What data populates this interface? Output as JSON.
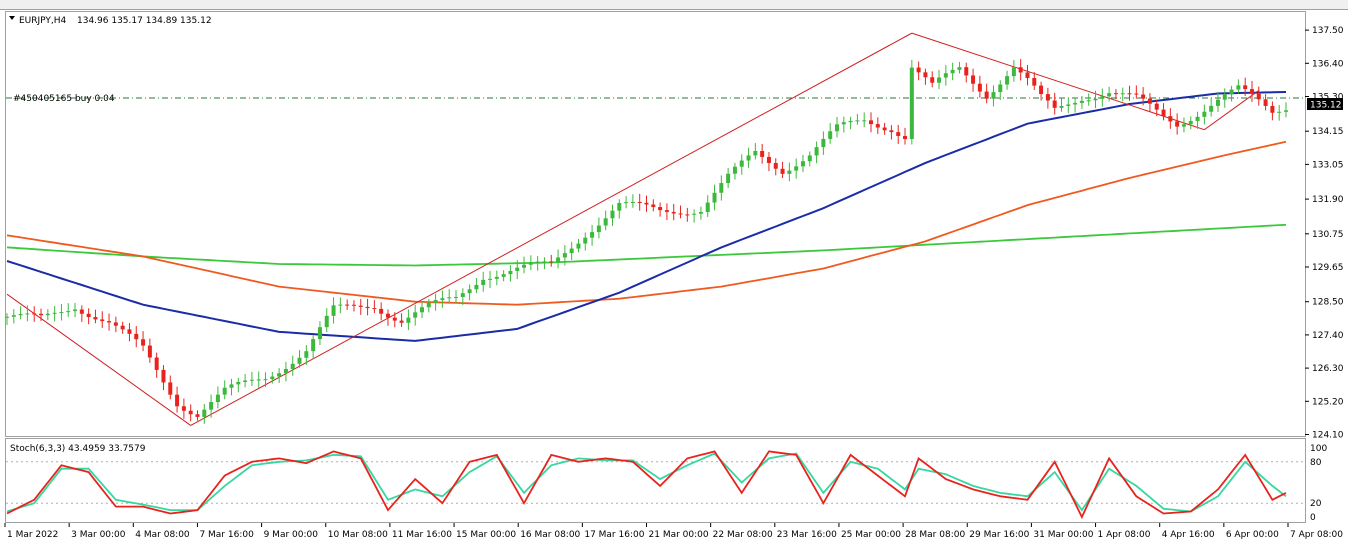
{
  "header": {
    "symbol": "EURJPY,H4",
    "ohlc": "134.96 135.17 134.89 135.12"
  },
  "trade_label": "#450405165 buy 0.04",
  "current_price_label": "135.12",
  "indicator": {
    "label": "Stoch(6,3,3) 43.4959 33.7579",
    "ticks": [
      "100",
      "80",
      "20",
      "0"
    ]
  },
  "colors": {
    "bull": "#3cb93c",
    "bear": "#e8231d",
    "ma_fast": "#1a2ca8",
    "ma_mid": "#f05a1e",
    "ma_slow": "#3cc83c",
    "trendline": "#d02020",
    "stoch_main": "#e8231d",
    "stoch_signal": "#36d7a0"
  },
  "chart_data": {
    "type": "candlestick",
    "price_axis_ticks": [
      "137.50",
      "136.40",
      "135.30",
      "134.15",
      "133.05",
      "131.90",
      "130.75",
      "129.65",
      "128.50",
      "127.40",
      "126.30",
      "125.20",
      "124.10"
    ],
    "price_range": [
      124.05,
      138.1
    ],
    "time_axis_labels": [
      "1 Mar 2022",
      "3 Mar 00:00",
      "4 Mar 08:00",
      "7 Mar 16:00",
      "9 Mar 00:00",
      "10 Mar 08:00",
      "11 Mar 16:00",
      "15 Mar 00:00",
      "16 Mar 08:00",
      "17 Mar 16:00",
      "21 Mar 00:00",
      "22 Mar 08:00",
      "23 Mar 16:00",
      "25 Mar 00:00",
      "28 Mar 08:00",
      "29 Mar 16:00",
      "31 Mar 00:00",
      "1 Apr 08:00",
      "4 Apr 16:00",
      "6 Apr 00:00",
      "7 Apr 08:00"
    ],
    "trade_level": 135.25,
    "close_samples": [
      [
        0,
        128.0
      ],
      [
        5,
        127.9
      ],
      [
        10,
        128.4
      ],
      [
        15,
        127.8
      ],
      [
        20,
        126.9
      ],
      [
        25,
        125.2
      ],
      [
        28,
        124.8
      ],
      [
        32,
        125.5
      ],
      [
        38,
        126.0
      ],
      [
        44,
        126.9
      ],
      [
        48,
        128.2
      ],
      [
        54,
        128.4
      ],
      [
        58,
        127.9
      ],
      [
        62,
        128.3
      ],
      [
        66,
        128.6
      ],
      [
        70,
        129.4
      ],
      [
        76,
        129.6
      ],
      [
        80,
        129.7
      ],
      [
        85,
        130.8
      ],
      [
        90,
        131.7
      ],
      [
        96,
        131.5
      ],
      [
        102,
        131.6
      ],
      [
        106,
        132.6
      ],
      [
        110,
        133.4
      ],
      [
        114,
        132.9
      ],
      [
        118,
        133.4
      ],
      [
        122,
        134.2
      ],
      [
        126,
        134.5
      ],
      [
        130,
        134.3
      ],
      [
        132,
        134.0
      ],
      [
        133,
        136.3
      ],
      [
        136,
        135.6
      ],
      [
        140,
        136.2
      ],
      [
        144,
        135.4
      ],
      [
        148,
        136.3
      ],
      [
        150,
        135.8
      ],
      [
        152,
        135.2
      ],
      [
        154,
        134.8
      ],
      [
        158,
        135.3
      ],
      [
        162,
        135.5
      ],
      [
        166,
        135.2
      ],
      [
        170,
        134.6
      ],
      [
        172,
        134.4
      ],
      [
        175,
        134.8
      ],
      [
        178,
        135.2
      ],
      [
        181,
        135.5
      ],
      [
        184,
        135.1
      ],
      [
        186,
        134.8
      ],
      [
        188,
        135.0
      ]
    ],
    "ma_fast_samples": [
      [
        0,
        129.85
      ],
      [
        20,
        128.4
      ],
      [
        40,
        127.5
      ],
      [
        60,
        127.2
      ],
      [
        75,
        127.6
      ],
      [
        90,
        128.8
      ],
      [
        105,
        130.3
      ],
      [
        120,
        131.6
      ],
      [
        135,
        133.1
      ],
      [
        150,
        134.4
      ],
      [
        165,
        135.05
      ],
      [
        178,
        135.4
      ],
      [
        188,
        135.45
      ]
    ],
    "ma_mid_samples": [
      [
        0,
        130.7
      ],
      [
        20,
        130.0
      ],
      [
        40,
        129.0
      ],
      [
        60,
        128.5
      ],
      [
        75,
        128.4
      ],
      [
        90,
        128.6
      ],
      [
        105,
        129.0
      ],
      [
        120,
        129.6
      ],
      [
        135,
        130.5
      ],
      [
        150,
        131.7
      ],
      [
        165,
        132.6
      ],
      [
        178,
        133.3
      ],
      [
        188,
        133.8
      ]
    ],
    "ma_slow_samples": [
      [
        0,
        130.3
      ],
      [
        20,
        130.0
      ],
      [
        40,
        129.75
      ],
      [
        60,
        129.7
      ],
      [
        80,
        129.8
      ],
      [
        100,
        130.0
      ],
      [
        120,
        130.2
      ],
      [
        140,
        130.45
      ],
      [
        160,
        130.7
      ],
      [
        180,
        130.95
      ],
      [
        188,
        131.05
      ]
    ],
    "trendlines": [
      [
        [
          0,
          128.75
        ],
        [
          27,
          124.4
        ]
      ],
      [
        [
          27,
          124.4
        ],
        [
          133,
          137.4
        ]
      ],
      [
        [
          133,
          137.4
        ],
        [
          176,
          134.2
        ]
      ],
      [
        [
          176,
          134.2
        ],
        [
          184,
          135.5
        ]
      ]
    ],
    "stoch_main": [
      [
        0,
        5
      ],
      [
        4,
        25
      ],
      [
        8,
        75
      ],
      [
        12,
        65
      ],
      [
        16,
        15
      ],
      [
        20,
        15
      ],
      [
        24,
        5
      ],
      [
        28,
        10
      ],
      [
        32,
        60
      ],
      [
        36,
        80
      ],
      [
        40,
        85
      ],
      [
        44,
        78
      ],
      [
        48,
        95
      ],
      [
        52,
        85
      ],
      [
        56,
        10
      ],
      [
        60,
        55
      ],
      [
        64,
        20
      ],
      [
        68,
        80
      ],
      [
        72,
        90
      ],
      [
        76,
        20
      ],
      [
        80,
        90
      ],
      [
        84,
        80
      ],
      [
        88,
        85
      ],
      [
        92,
        80
      ],
      [
        96,
        45
      ],
      [
        100,
        85
      ],
      [
        104,
        95
      ],
      [
        108,
        35
      ],
      [
        112,
        95
      ],
      [
        116,
        90
      ],
      [
        120,
        20
      ],
      [
        124,
        90
      ],
      [
        128,
        60
      ],
      [
        132,
        30
      ],
      [
        134,
        85
      ],
      [
        138,
        55
      ],
      [
        142,
        40
      ],
      [
        146,
        30
      ],
      [
        150,
        25
      ],
      [
        154,
        80
      ],
      [
        158,
        0
      ],
      [
        162,
        85
      ],
      [
        166,
        30
      ],
      [
        170,
        5
      ],
      [
        174,
        8
      ],
      [
        178,
        40
      ],
      [
        182,
        90
      ],
      [
        186,
        25
      ],
      [
        188,
        35
      ]
    ],
    "stoch_signal": [
      [
        0,
        8
      ],
      [
        4,
        20
      ],
      [
        8,
        70
      ],
      [
        12,
        70
      ],
      [
        16,
        25
      ],
      [
        20,
        18
      ],
      [
        24,
        10
      ],
      [
        28,
        10
      ],
      [
        32,
        45
      ],
      [
        36,
        75
      ],
      [
        40,
        80
      ],
      [
        44,
        82
      ],
      [
        48,
        90
      ],
      [
        52,
        88
      ],
      [
        56,
        25
      ],
      [
        60,
        40
      ],
      [
        64,
        30
      ],
      [
        68,
        65
      ],
      [
        72,
        88
      ],
      [
        76,
        35
      ],
      [
        80,
        75
      ],
      [
        84,
        85
      ],
      [
        88,
        82
      ],
      [
        92,
        82
      ],
      [
        96,
        55
      ],
      [
        100,
        75
      ],
      [
        104,
        92
      ],
      [
        108,
        50
      ],
      [
        112,
        85
      ],
      [
        116,
        92
      ],
      [
        120,
        35
      ],
      [
        124,
        80
      ],
      [
        128,
        70
      ],
      [
        132,
        40
      ],
      [
        134,
        70
      ],
      [
        138,
        62
      ],
      [
        142,
        45
      ],
      [
        146,
        35
      ],
      [
        150,
        30
      ],
      [
        154,
        65
      ],
      [
        158,
        10
      ],
      [
        162,
        70
      ],
      [
        166,
        45
      ],
      [
        170,
        12
      ],
      [
        174,
        8
      ],
      [
        178,
        30
      ],
      [
        182,
        80
      ],
      [
        186,
        45
      ],
      [
        188,
        30
      ]
    ]
  }
}
